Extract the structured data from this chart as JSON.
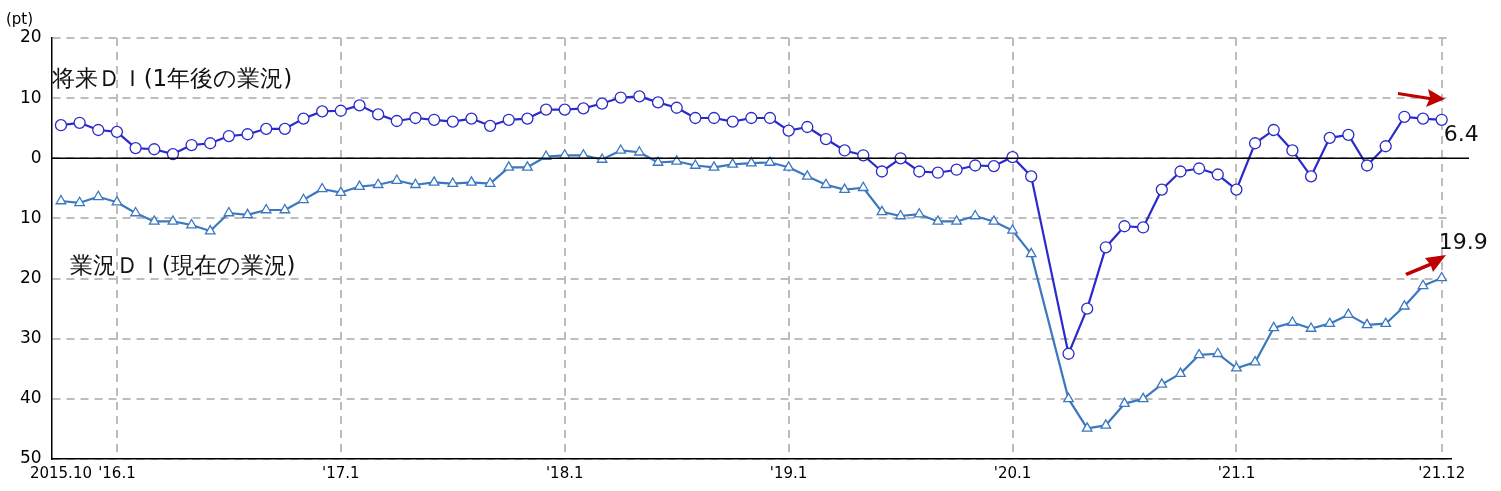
{
  "chart_data": {
    "type": "line",
    "ylabel": "(pt)",
    "categories": [
      "2015.10",
      null,
      null,
      "'16.1",
      null,
      null,
      null,
      null,
      null,
      null,
      null,
      null,
      null,
      null,
      null,
      "'17.1",
      null,
      null,
      null,
      null,
      null,
      null,
      null,
      null,
      null,
      null,
      null,
      "'18.1",
      null,
      null,
      null,
      null,
      null,
      null,
      null,
      null,
      null,
      null,
      null,
      "'19.1",
      null,
      null,
      null,
      null,
      null,
      null,
      null,
      null,
      null,
      null,
      null,
      "'20.1",
      null,
      null,
      null,
      null,
      null,
      null,
      null,
      null,
      null,
      null,
      null,
      "'21.1",
      null,
      null,
      null,
      null,
      null,
      null,
      null,
      null,
      null,
      null,
      "'21.12"
    ],
    "series": [
      {
        "name": "将来ＤＩ(1年後の業況)",
        "color": "#2b2bcc",
        "marker": "circle",
        "values": [
          5.5,
          5.9,
          4.7,
          4.4,
          1.7,
          1.5,
          0.7,
          2.2,
          2.5,
          3.7,
          4.0,
          4.9,
          4.9,
          6.6,
          7.8,
          7.9,
          8.8,
          7.3,
          6.2,
          6.7,
          6.4,
          6.1,
          6.6,
          5.4,
          6.4,
          6.6,
          8.1,
          8.1,
          8.3,
          9.1,
          10.1,
          10.3,
          9.3,
          8.4,
          6.7,
          6.7,
          6.1,
          6.7,
          6.7,
          4.6,
          5.2,
          3.2,
          1.3,
          0.5,
          -2.2,
          0,
          -2.2,
          -2.4,
          -1.9,
          -1.2,
          -1.3,
          0.2,
          -3.0,
          null,
          -32.5,
          -25.0,
          -14.8,
          -11.3,
          -11.5,
          -5.2,
          -2.2,
          -1.7,
          -2.7,
          -5.2,
          2.5,
          4.7,
          1.3,
          -3.0,
          3.4,
          3.9,
          -1.2,
          2.0,
          6.9,
          6.6,
          6.4
        ]
      },
      {
        "name": "業況ＤＩ(現在の業況)",
        "color": "#3b78c0",
        "marker": "triangle",
        "values": [
          -7.1,
          -7.4,
          -6.4,
          -7.3,
          -9.1,
          -10.5,
          -10.5,
          -11.1,
          -12.1,
          -9.1,
          -9.4,
          -8.6,
          -8.6,
          -6.9,
          -5.1,
          -5.7,
          -4.7,
          -4.4,
          -3.7,
          -4.4,
          -4.0,
          -4.2,
          -4.0,
          -4.2,
          -1.5,
          -1.5,
          0.3,
          0.5,
          0.5,
          -0.2,
          1.3,
          1.0,
          -0.7,
          -0.5,
          -1.2,
          -1.5,
          -1.0,
          -0.8,
          -0.7,
          -1.5,
          -3.0,
          -4.4,
          -5.2,
          -4.9,
          -8.9,
          -9.6,
          -9.3,
          -10.5,
          -10.5,
          -9.6,
          -10.5,
          -12.0,
          -15.9,
          null,
          -40.0,
          -44.9,
          -44.4,
          -40.8,
          -40.0,
          -37.6,
          -35.8,
          -32.7,
          -32.5,
          -34.9,
          -33.9,
          -28.2,
          -27.3,
          -28.3,
          -27.5,
          -26.0,
          -27.7,
          -27.5,
          -24.6,
          -21.2,
          -19.9
        ]
      }
    ],
    "ylim": [
      -50,
      20
    ],
    "yticks": [
      {
        "value": -50,
        "label": "50"
      },
      {
        "value": -40,
        "label": "40"
      },
      {
        "value": -30,
        "label": "30"
      },
      {
        "value": -20,
        "label": "20"
      },
      {
        "value": -10,
        "label": "10"
      },
      0,
      10,
      20
    ],
    "grid": true,
    "legend": false,
    "ref_lines": [
      {
        "axis": "y",
        "value": 0,
        "color": "#000000"
      }
    ],
    "annotations": [
      {
        "text": "6.4",
        "x": "'21.12",
        "y": 6.4
      },
      {
        "text": "19.9",
        "x": "'21.12",
        "y": -19.9
      }
    ]
  }
}
